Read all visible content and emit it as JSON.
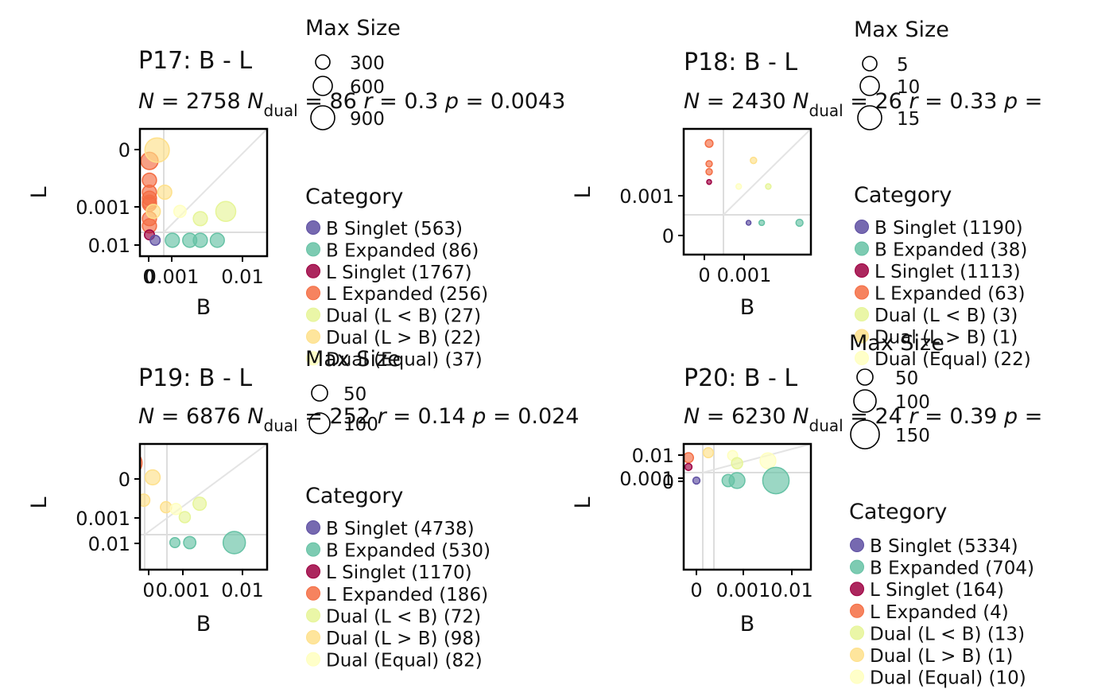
{
  "colors": {
    "B Singlet": "#5e4fa2",
    "B Expanded": "#66c2a5",
    "L Singlet": "#9e0142",
    "L Expanded": "#f46d43",
    "Dual (L < B)": "#e6f598",
    "Dual (L > B)": "#fee08b",
    "Dual (Equal)": "#ffffbf"
  },
  "chart_data": [
    {
      "type": "scatter",
      "title": "P17: B - L",
      "stats": {
        "N": "2758",
        "N_dual": "86",
        "r": "0.3",
        "p": "0.0043"
      },
      "xlabel": "B",
      "ylabel": "L",
      "xticks": [
        "0",
        "0.001",
        "0.01"
      ],
      "yticks": [
        "0.01",
        "0.001",
        "0"
      ],
      "size_legend": {
        "title": "Max Size",
        "values": [
          "300",
          "600",
          "900"
        ]
      },
      "category_legend": {
        "title": "Category",
        "items": [
          {
            "label": "B Singlet (563)",
            "key": "B Singlet"
          },
          {
            "label": "B Expanded (86)",
            "key": "B Expanded"
          },
          {
            "label": "L Singlet (1767)",
            "key": "L Singlet"
          },
          {
            "label": "L Expanded (256)",
            "key": "L Expanded"
          },
          {
            "label": "Dual (L < B) (27)",
            "key": "Dual (L < B)"
          },
          {
            "label": "Dual (L > B) (22)",
            "key": "Dual (L > B)"
          },
          {
            "label": "Dual (Equal) (37)",
            "key": "Dual (Equal)"
          }
        ]
      },
      "points": [
        {
          "c": "L Expanded",
          "x": 0,
          "y": 0.012,
          "s": 60
        },
        {
          "c": "L Expanded",
          "x": 0,
          "y": 0.007,
          "s": 40
        },
        {
          "c": "L Expanded",
          "x": 0,
          "y": 0.004,
          "s": 40
        },
        {
          "c": "L Expanded",
          "x": 0,
          "y": 0.0025,
          "s": 40
        },
        {
          "c": "L Expanded",
          "x": 0,
          "y": 0.0015,
          "s": 40
        },
        {
          "c": "L Expanded",
          "x": 0,
          "y": 0.001,
          "s": 40
        },
        {
          "c": "L Expanded",
          "x": 0,
          "y": 0.0006,
          "s": 40
        },
        {
          "c": "L Expanded",
          "x": 0,
          "y": 0.0004,
          "s": 40
        },
        {
          "c": "L Singlet",
          "x": 0,
          "y": 0.00015,
          "s": 20
        },
        {
          "c": "Dual (L > B)",
          "x": 0.0002,
          "y": 0.015,
          "s": 120
        },
        {
          "c": "Dual (L > B)",
          "x": 0.0004,
          "y": 0.004,
          "s": 40
        },
        {
          "c": "Dual (L > B)",
          "x": 0.0001,
          "y": 0.0008,
          "s": 40
        },
        {
          "c": "Dual (Equal)",
          "x": 0.0008,
          "y": 0.0008,
          "s": 30
        },
        {
          "c": "Dual (L < B)",
          "x": 0.004,
          "y": 0.0006,
          "s": 40
        },
        {
          "c": "Dual (L < B)",
          "x": 0.01,
          "y": 0.0008,
          "s": 80
        },
        {
          "c": "B Singlet",
          "x": 0.00015,
          "y": 0,
          "s": 20
        },
        {
          "c": "B Expanded",
          "x": 0.0006,
          "y": 0,
          "s": 40
        },
        {
          "c": "B Expanded",
          "x": 0.0015,
          "y": 0,
          "s": 40
        },
        {
          "c": "B Expanded",
          "x": 0.004,
          "y": 0,
          "s": 40
        },
        {
          "c": "B Expanded",
          "x": 0.008,
          "y": 0,
          "s": 40
        }
      ]
    },
    {
      "type": "scatter",
      "title": "P18: B - L",
      "stats": {
        "N": "2430",
        "N_dual": "26",
        "r": "0.33",
        "p": ""
      },
      "xlabel": "B",
      "ylabel": "L",
      "xticks": [
        "0",
        "0.001"
      ],
      "yticks": [
        "0.001",
        "0"
      ],
      "size_legend": {
        "title": "Max Size",
        "values": [
          "5",
          "10",
          "15"
        ]
      },
      "category_legend": {
        "title": "Category",
        "items": [
          {
            "label": "B Singlet (1190)",
            "key": "B Singlet"
          },
          {
            "label": "B Expanded (38)",
            "key": "B Expanded"
          },
          {
            "label": "L Singlet (1113)",
            "key": "L Singlet"
          },
          {
            "label": "L Expanded (63)",
            "key": "L Expanded"
          },
          {
            "label": "Dual (L < B) (3)",
            "key": "Dual (L < B)"
          },
          {
            "label": "Dual (L > B) (1)",
            "key": "Dual (L > B)"
          },
          {
            "label": "Dual (Equal) (22)",
            "key": "Dual (Equal)"
          }
        ]
      },
      "points": [
        {
          "c": "L Expanded",
          "x": 0,
          "y": 0.004,
          "s": 12
        },
        {
          "c": "L Expanded",
          "x": 0,
          "y": 0.0022,
          "s": 8
        },
        {
          "c": "L Expanded",
          "x": 0,
          "y": 0.0015,
          "s": 8
        },
        {
          "c": "L Singlet",
          "x": 0,
          "y": 0.0009,
          "s": 4
        },
        {
          "c": "Dual (L > B)",
          "x": 0.0009,
          "y": 0.0025,
          "s": 8
        },
        {
          "c": "Dual (Equal)",
          "x": 0.0006,
          "y": 0.0008,
          "s": 6
        },
        {
          "c": "Dual (L < B)",
          "x": 0.0016,
          "y": 0.0008,
          "s": 6
        },
        {
          "c": "B Singlet",
          "x": 0.0008,
          "y": 0,
          "s": 4
        },
        {
          "c": "B Expanded",
          "x": 0.0012,
          "y": 0,
          "s": 6
        },
        {
          "c": "B Expanded",
          "x": 0.0035,
          "y": 0,
          "s": 10
        }
      ]
    },
    {
      "type": "scatter",
      "title": "P19: B - L",
      "stats": {
        "N": "6876",
        "N_dual": "252",
        "r": "0.14",
        "p": "0.024"
      },
      "xlabel": "B",
      "ylabel": "L",
      "xticks": [
        "0",
        "0.001",
        "0.01"
      ],
      "yticks": [
        "0.01",
        "0.001",
        "0"
      ],
      "size_legend": {
        "title": "Max Size",
        "values": [
          "50",
          "100"
        ]
      },
      "category_legend": {
        "title": "Category",
        "items": [
          {
            "label": "B Singlet (4738)",
            "key": "B Singlet"
          },
          {
            "label": "B Expanded (530)",
            "key": "B Expanded"
          },
          {
            "label": "L Singlet (1170)",
            "key": "L Singlet"
          },
          {
            "label": "L Expanded (186)",
            "key": "L Expanded"
          },
          {
            "label": "Dual (L < B) (72)",
            "key": "Dual (L < B)"
          },
          {
            "label": "Dual (L > B) (98)",
            "key": "Dual (L > B)"
          },
          {
            "label": "Dual (Equal) (82)",
            "key": "Dual (Equal)"
          }
        ]
      },
      "points": [
        {
          "c": "L Expanded",
          "x": 0,
          "y": 0.03,
          "s": 110
        },
        {
          "c": "L Expanded",
          "x": 0,
          "y": 0.01,
          "s": 40
        },
        {
          "c": "L Expanded",
          "x": 0,
          "y": 0.004,
          "s": 30
        },
        {
          "c": "L Expanded",
          "x": 0,
          "y": 0.0015,
          "s": 25
        },
        {
          "c": "L Expanded",
          "x": 0,
          "y": 0.0008,
          "s": 20
        },
        {
          "c": "L Singlet",
          "x": 0,
          "y": 0.00012,
          "s": 8
        },
        {
          "c": "Dual (L > B)",
          "x": 0.0005,
          "y": 0.012,
          "s": 45
        },
        {
          "c": "Dual (L > B)",
          "x": 0.0003,
          "y": 0.004,
          "s": 30
        },
        {
          "c": "Dual (L > B)",
          "x": 0.0008,
          "y": 0.002,
          "s": 25
        },
        {
          "c": "Dual (Equal)",
          "x": 0.0012,
          "y": 0.0015,
          "s": 25
        },
        {
          "c": "Dual (L < B)",
          "x": 0.003,
          "y": 0.0008,
          "s": 25
        },
        {
          "c": "Dual (L < B)",
          "x": 0.006,
          "y": 0.003,
          "s": 35
        },
        {
          "c": "B Singlet",
          "x": 0.00012,
          "y": 0,
          "s": 8
        },
        {
          "c": "B Expanded",
          "x": 0.001,
          "y": 0,
          "s": 20
        },
        {
          "c": "B Expanded",
          "x": 0.004,
          "y": 0,
          "s": 30
        },
        {
          "c": "B Expanded",
          "x": 0.02,
          "y": 0,
          "s": 100
        }
      ]
    },
    {
      "type": "scatter",
      "title": "P20: B - L",
      "stats": {
        "N": "6230",
        "N_dual": "24",
        "r": "0.39",
        "p": ""
      },
      "xlabel": "B",
      "ylabel": "L",
      "xticks": [
        "0",
        "0.001",
        "0.01"
      ],
      "yticks": [
        "0.01",
        "0.001",
        "0"
      ],
      "size_legend": {
        "title": "Max Size",
        "values": [
          "50",
          "100",
          "150"
        ]
      },
      "category_legend": {
        "title": "Category",
        "items": [
          {
            "label": "B Singlet (5334)",
            "key": "B Singlet"
          },
          {
            "label": "B Expanded (704)",
            "key": "B Expanded"
          },
          {
            "label": "L Singlet (164)",
            "key": "L Singlet"
          },
          {
            "label": "L Expanded (4)",
            "key": "L Expanded"
          },
          {
            "label": "Dual (L < B) (13)",
            "key": "Dual (L < B)"
          },
          {
            "label": "Dual (L > B) (1)",
            "key": "Dual (L > B)"
          },
          {
            "label": "Dual (Equal) (10)",
            "key": "Dual (Equal)"
          }
        ]
      },
      "points": [
        {
          "c": "L Expanded",
          "x": 0,
          "y": 0.012,
          "s": 20
        },
        {
          "c": "L Singlet",
          "x": 0,
          "y": 0.003,
          "s": 10
        },
        {
          "c": "Dual (L > B)",
          "x": 0.0005,
          "y": 0.03,
          "s": 20
        },
        {
          "c": "Dual (Equal)",
          "x": 0.002,
          "y": 0.02,
          "s": 20
        },
        {
          "c": "Dual (L < B)",
          "x": 0.003,
          "y": 0.006,
          "s": 25
        },
        {
          "c": "Dual (Equal)",
          "x": 0.01,
          "y": 0.008,
          "s": 50
        },
        {
          "c": "B Singlet",
          "x": 0.0002,
          "y": 0,
          "s": 10
        },
        {
          "c": "B Expanded",
          "x": 0.001,
          "y": 0,
          "s": 30
        },
        {
          "c": "B Expanded",
          "x": 0.003,
          "y": 0,
          "s": 50
        },
        {
          "c": "B Expanded",
          "x": 0.012,
          "y": 0,
          "s": 140
        }
      ]
    }
  ]
}
